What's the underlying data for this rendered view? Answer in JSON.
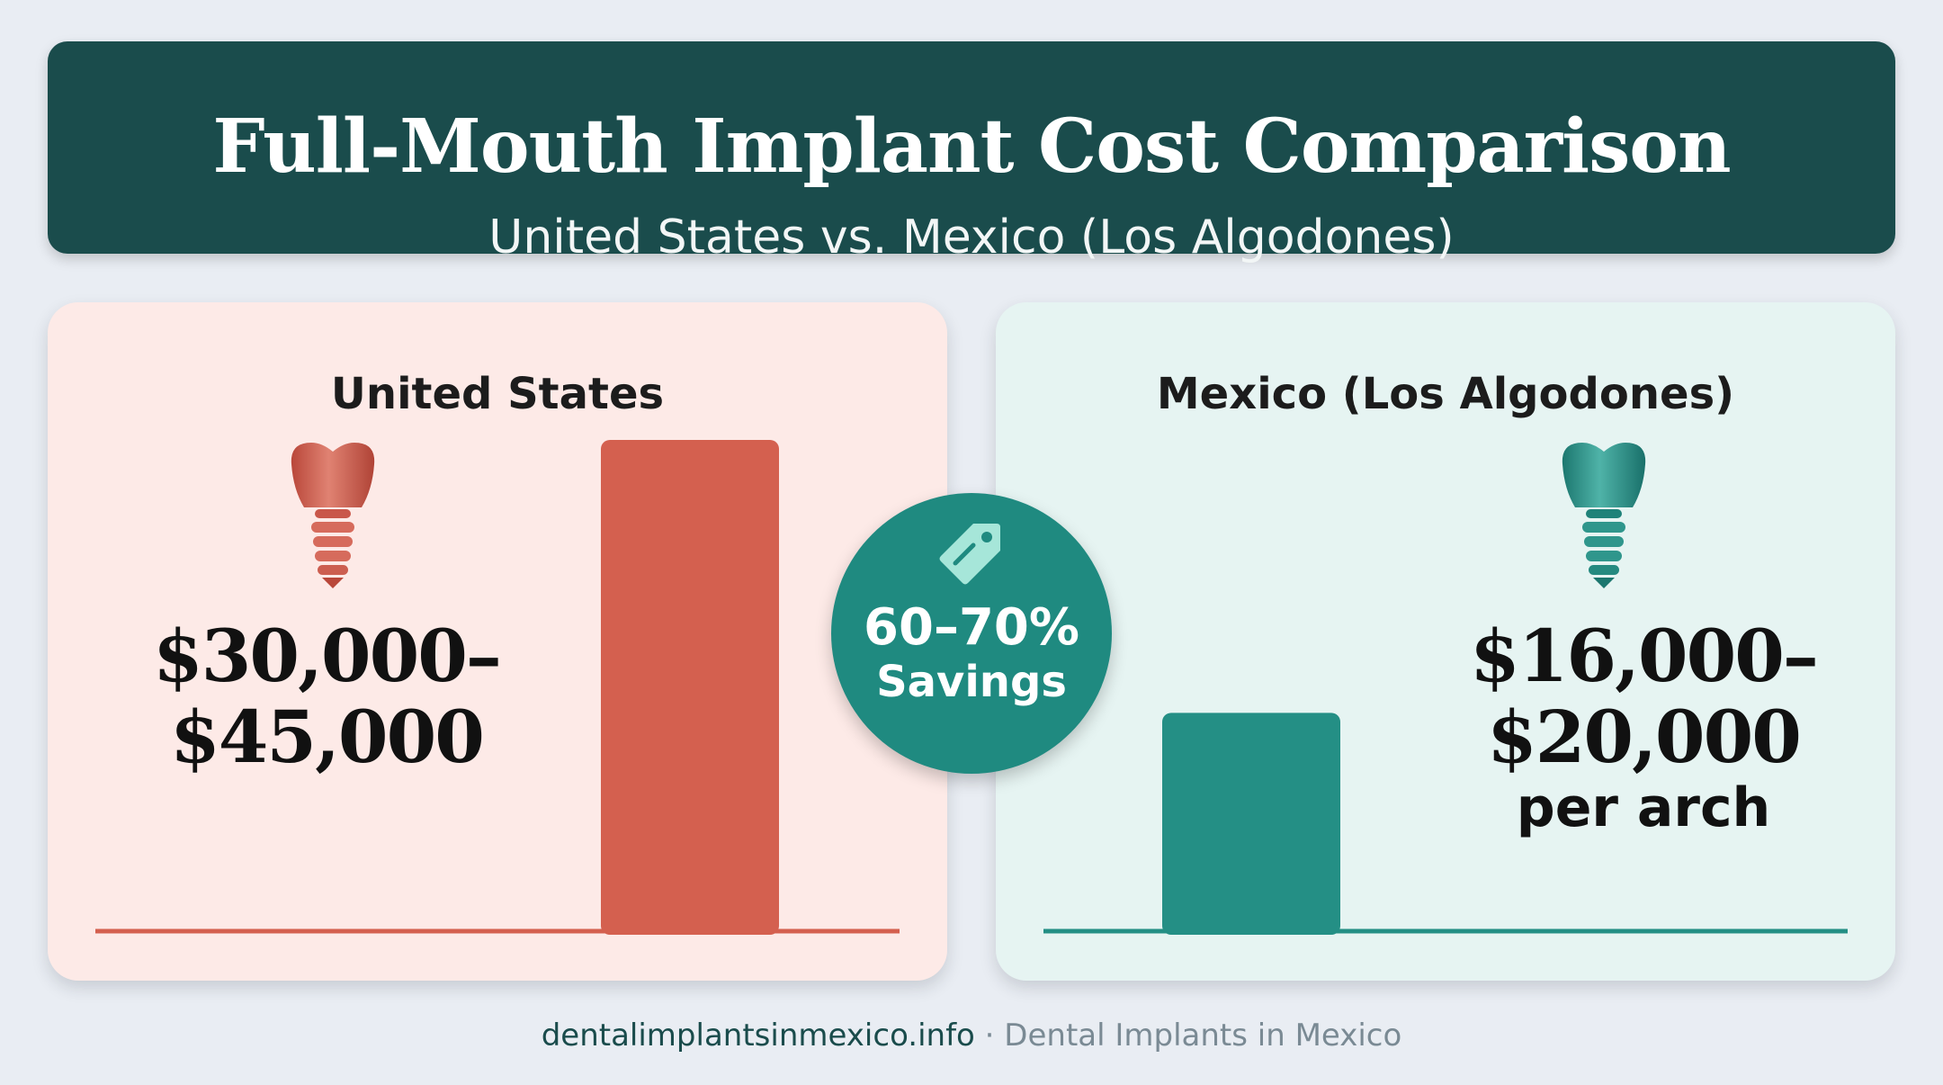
{
  "header": {
    "title": "Full-Mouth Implant Cost Comparison",
    "subtitle": "United States vs. Mexico (Los Algodones)"
  },
  "panels": {
    "us": {
      "title": "United States",
      "price_line1": "$30,000–",
      "price_line2": "$45,000",
      "color": "#d4604f",
      "icon": "dental-implant-icon"
    },
    "mx": {
      "title": "Mexico (Los Algodones)",
      "price_line1": "$16,000–",
      "price_line2": "$20,000",
      "unit": "per arch",
      "color": "#248f85",
      "icon": "dental-implant-icon"
    }
  },
  "badge": {
    "percent": "60–70%",
    "label": "Savings",
    "icon": "price-tag-icon",
    "color": "#1f8a80"
  },
  "footer": {
    "domain": "dentalimplantsinmexico.info",
    "separator": "·",
    "site_name": "Dental Implants in Mexico"
  },
  "chart_data": {
    "type": "bar",
    "categories": [
      "United States",
      "Mexico (Los Algodones)"
    ],
    "series": [
      {
        "values": [
          45000,
          20000
        ]
      }
    ],
    "value_labels": [
      "$30,000–$45,000",
      "$16,000–$20,000 per arch"
    ],
    "colors": [
      "#d4604f",
      "#248f85"
    ],
    "ylim": [
      0,
      45000
    ],
    "grid": false,
    "legend": "none"
  }
}
